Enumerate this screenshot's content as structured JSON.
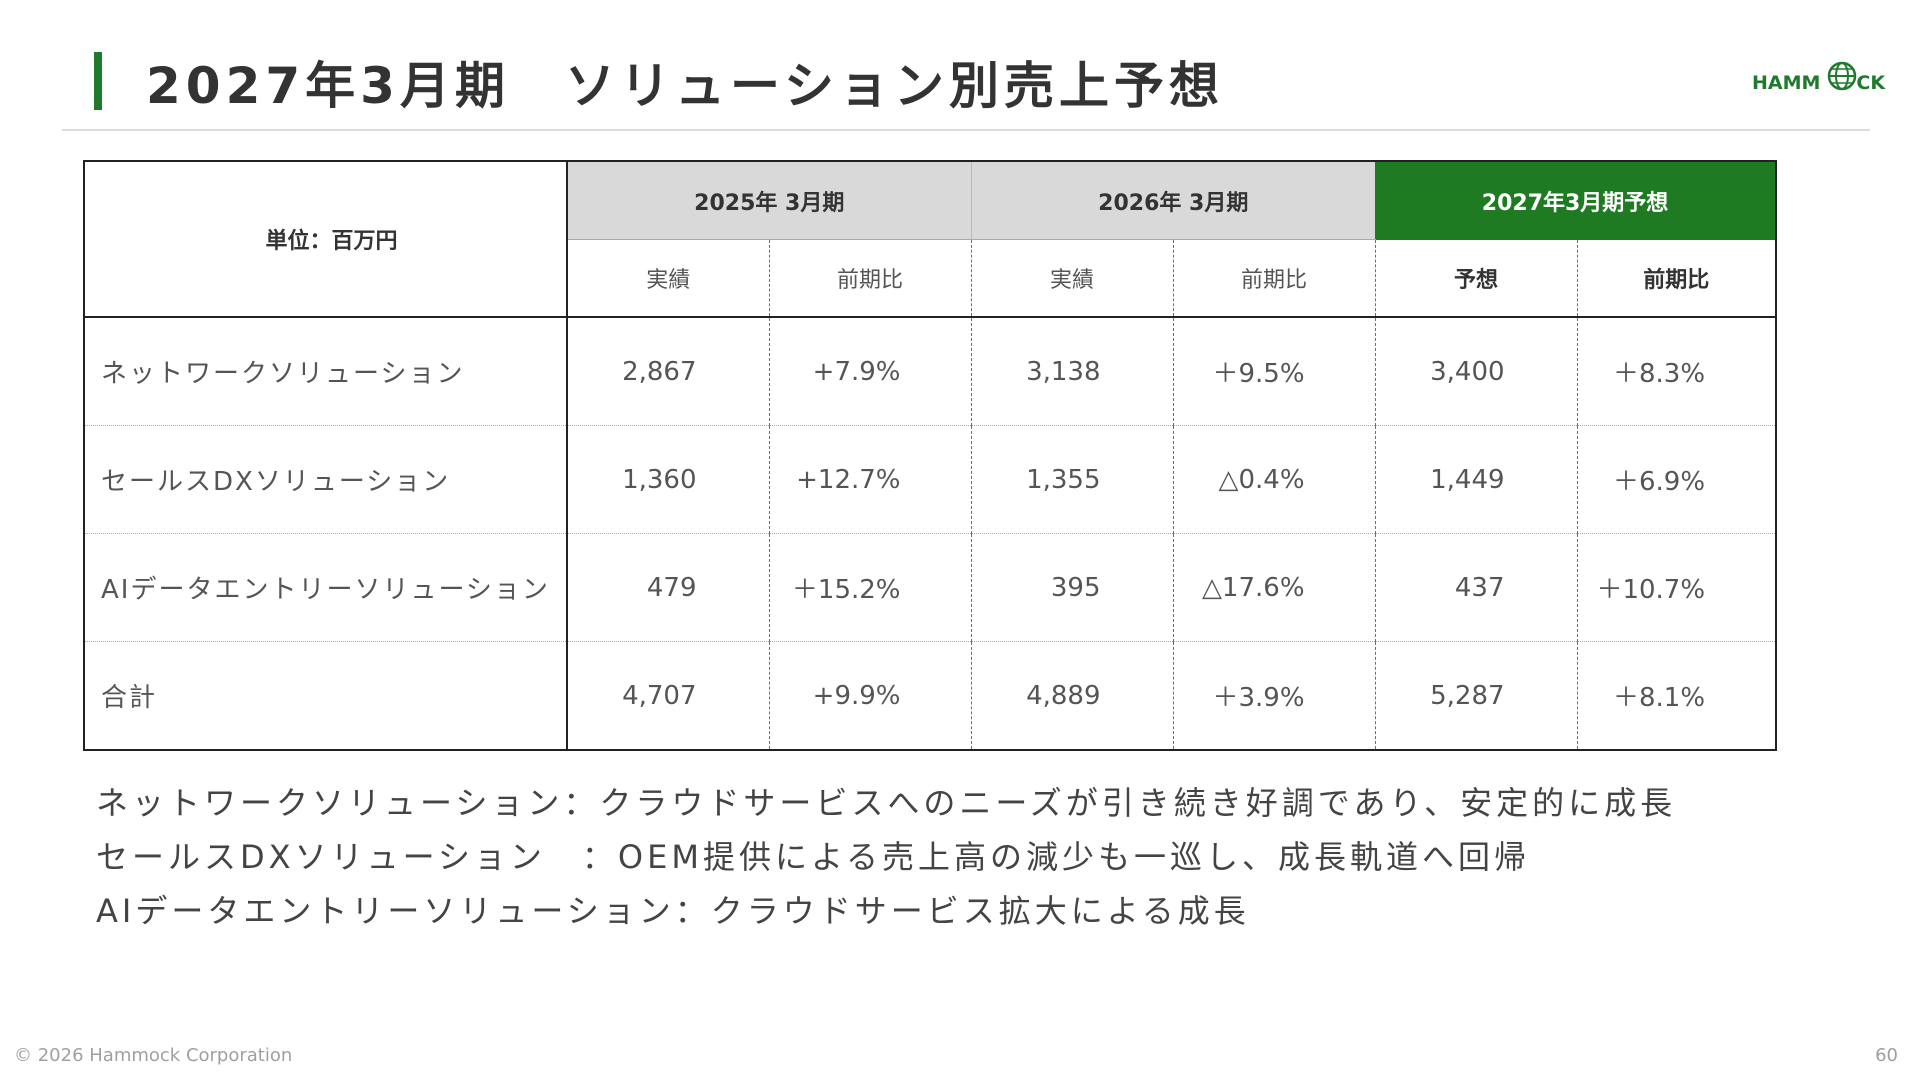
{
  "title": "2027年3月期　ソリューション別売上予想",
  "logo": {
    "text_left": "HAMM",
    "text_right": "CK"
  },
  "table": {
    "unit": "単位：百万円",
    "periods": [
      {
        "label": "2025年 3月期",
        "col1": "実績",
        "col2": "前期比"
      },
      {
        "label": "2026年 3月期",
        "col1": "実績",
        "col2": "前期比"
      },
      {
        "label": "2027年3月期予想",
        "col1": "予想",
        "col2": "前期比"
      }
    ],
    "rows": [
      {
        "label": "ネットワークソリューション",
        "values": [
          "2,867",
          "+7.9%",
          "3,138",
          "＋9.5%",
          "3,400",
          "＋8.3%"
        ]
      },
      {
        "label": "セールスDXソリューション",
        "values": [
          "1,360",
          "+12.7%",
          "1,355",
          "△0.4%",
          "1,449",
          "＋6.9%"
        ]
      },
      {
        "label": "AIデータエントリーソリューション",
        "values": [
          "479",
          "＋15.2%",
          "395",
          "△17.6%",
          "437",
          "＋10.7%"
        ]
      },
      {
        "label": "合計",
        "values": [
          "4,707",
          "+9.9%",
          "4,889",
          "＋3.9%",
          "5,287",
          "＋8.1%"
        ]
      }
    ]
  },
  "notes": [
    "ネットワークソリューション：クラウドサービスへのニーズが引き続き好調であり、安定的に成長",
    "セールスDXソリューション　：OEM提供による売上高の減少も一巡し、成長軌道へ回帰",
    "AIデータエントリーソリューション：クラウドサービス拡大による成長"
  ],
  "footer": {
    "copyright": "© 2026 Hammock Corporation",
    "page": "60"
  },
  "colors": {
    "accent_green": "#1e7b22",
    "header_gray": "#d9d9d9",
    "divider_green": "#2f9a3a"
  }
}
